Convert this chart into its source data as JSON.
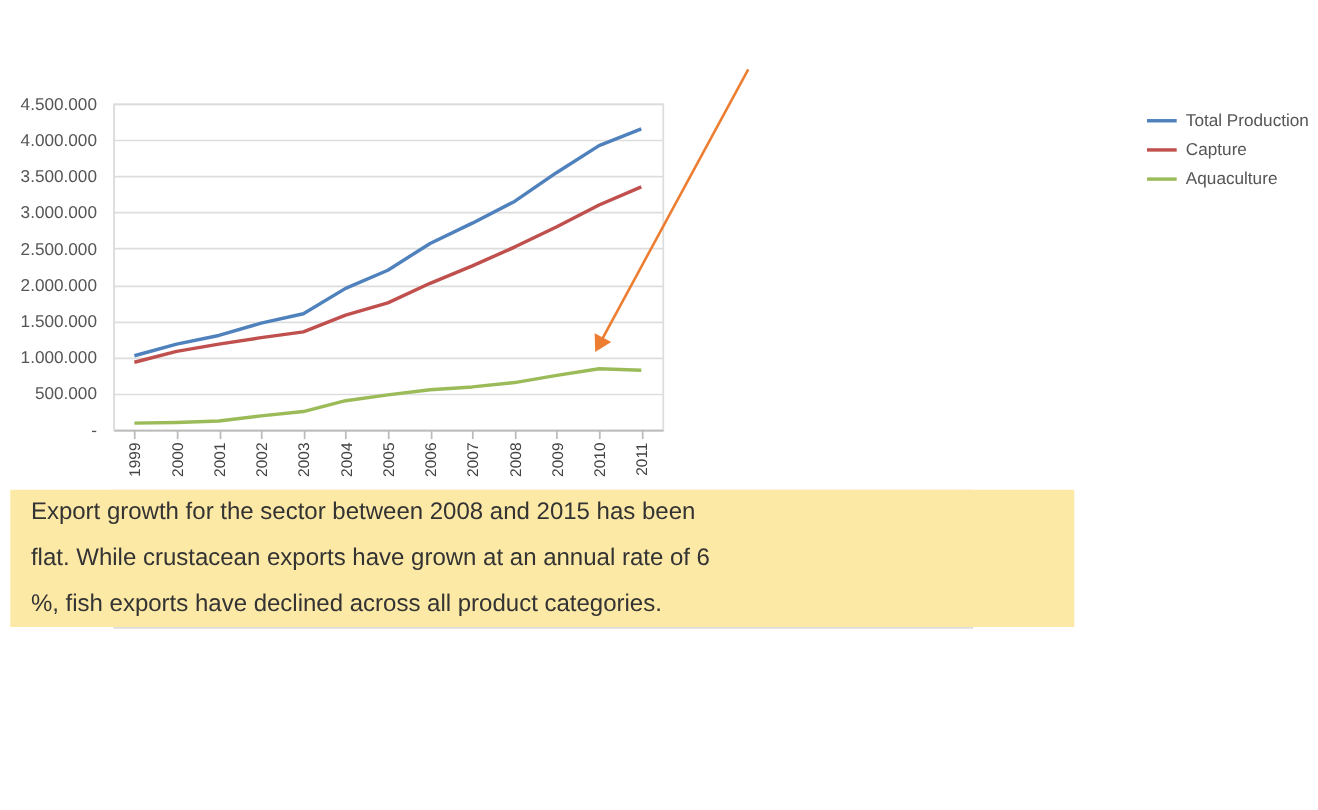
{
  "chart_data": {
    "type": "line",
    "categories": [
      "1999",
      "2000",
      "2001",
      "2002",
      "2003",
      "2004",
      "2005",
      "2006",
      "2007",
      "2008",
      "2009",
      "2010",
      "2011"
    ],
    "series": [
      {
        "name": "Total Production",
        "color": "#4f81bd",
        "values": [
          1020000,
          1180000,
          1300000,
          1470000,
          1600000,
          1950000,
          2200000,
          2570000,
          2850000,
          3150000,
          3550000,
          3920000,
          4150000
        ]
      },
      {
        "name": "Capture",
        "color": "#c0504d",
        "values": [
          930000,
          1080000,
          1180000,
          1270000,
          1350000,
          1580000,
          1750000,
          2020000,
          2260000,
          2520000,
          2800000,
          3100000,
          3350000
        ]
      },
      {
        "name": "Aquaculture",
        "color": "#9bbb59",
        "values": [
          90000,
          100000,
          120000,
          190000,
          250000,
          400000,
          480000,
          550000,
          590000,
          650000,
          750000,
          840000,
          820000
        ]
      }
    ],
    "ylim": [
      0,
      4500000
    ],
    "yticks": [
      {
        "value": 0,
        "label": "-"
      },
      {
        "value": 500000,
        "label": "500.000"
      },
      {
        "value": 1000000,
        "label": "1.000.000"
      },
      {
        "value": 1500000,
        "label": "1.500.000"
      },
      {
        "value": 2000000,
        "label": "2.000.000"
      },
      {
        "value": 2500000,
        "label": "2.500.000"
      },
      {
        "value": 3000000,
        "label": "3.000.000"
      },
      {
        "value": 3500000,
        "label": "3.500.000"
      },
      {
        "value": 4000000,
        "label": "4.000.000"
      },
      {
        "value": 4500000,
        "label": "4.500.000"
      }
    ],
    "grid": "y",
    "legend": "right",
    "marker": "none",
    "line_style": "solid",
    "annotations": [
      "Export growth for the sector between 2008 and 2015 has been flat. While crustacean exports have grown at an annual rate of 6 %, fish exports have declined across all product categories."
    ]
  }
}
